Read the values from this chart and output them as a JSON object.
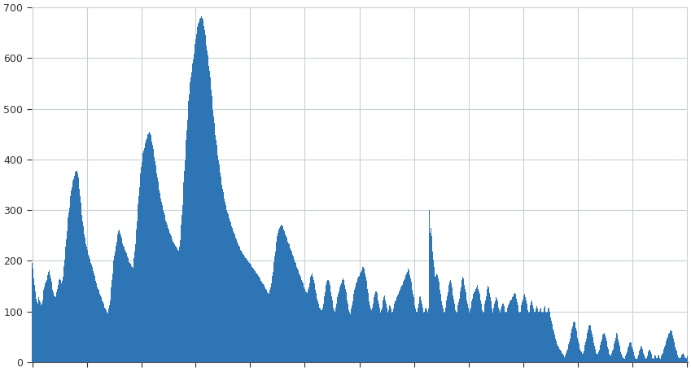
{
  "ylim": [
    0,
    700
  ],
  "yticks": [
    0,
    100,
    200,
    300,
    400,
    500,
    600,
    700
  ],
  "bar_color": "#2e75b6",
  "background_color": "#ffffff",
  "grid_color": "#c8d0d8",
  "figsize": [
    8.49,
    4.57
  ],
  "dpi": 100,
  "values": [
    195,
    185,
    175,
    165,
    152,
    140,
    132,
    125,
    118,
    115,
    120,
    128,
    122,
    118,
    115,
    112,
    115,
    122,
    132,
    142,
    148,
    152,
    155,
    158,
    162,
    168,
    172,
    178,
    182,
    178,
    172,
    165,
    158,
    150,
    142,
    138,
    135,
    132,
    130,
    128,
    132,
    138,
    145,
    152,
    158,
    162,
    165,
    162,
    158,
    155,
    160,
    168,
    178,
    190,
    202,
    215,
    228,
    242,
    258,
    272,
    285,
    295,
    305,
    315,
    328,
    338,
    345,
    352,
    358,
    362,
    368,
    372,
    375,
    378,
    380,
    378,
    372,
    365,
    355,
    342,
    328,
    315,
    302,
    290,
    278,
    268,
    260,
    252,
    245,
    238,
    232,
    228,
    222,
    218,
    212,
    208,
    204,
    200,
    196,
    192,
    188,
    184,
    180,
    175,
    170,
    165,
    160,
    155,
    150,
    148,
    145,
    142,
    138,
    135,
    132,
    128,
    125,
    122,
    118,
    115,
    112,
    108,
    105,
    102,
    100,
    98,
    96,
    98,
    105,
    112,
    122,
    135,
    148,
    162,
    175,
    188,
    200,
    210,
    218,
    225,
    230,
    238,
    245,
    252,
    258,
    262,
    260,
    255,
    250,
    245,
    240,
    235,
    230,
    228,
    225,
    222,
    218,
    215,
    212,
    208,
    205,
    202,
    198,
    196,
    194,
    192,
    190,
    188,
    186,
    195,
    205,
    218,
    232,
    248,
    262,
    278,
    295,
    312,
    328,
    345,
    360,
    372,
    385,
    395,
    405,
    412,
    418,
    422,
    428,
    432,
    438,
    442,
    445,
    450,
    452,
    455,
    455,
    452,
    448,
    442,
    435,
    428,
    420,
    412,
    404,
    396,
    388,
    380,
    372,
    364,
    356,
    348,
    340,
    334,
    328,
    322,
    316,
    310,
    305,
    300,
    295,
    290,
    285,
    280,
    276,
    272,
    268,
    265,
    262,
    258,
    255,
    252,
    248,
    245,
    242,
    238,
    236,
    234,
    232,
    230,
    228,
    226,
    224,
    222,
    220,
    218,
    228,
    240,
    255,
    272,
    290,
    310,
    332,
    355,
    378,
    398,
    418,
    438,
    458,
    478,
    498,
    515,
    528,
    540,
    552,
    562,
    572,
    580,
    590,
    598,
    608,
    618,
    628,
    638,
    648,
    655,
    662,
    668,
    672,
    676,
    678,
    680,
    682,
    682,
    680,
    676,
    670,
    663,
    655,
    645,
    635,
    625,
    615,
    605,
    595,
    585,
    575,
    562,
    550,
    538,
    525,
    512,
    498,
    485,
    472,
    460,
    448,
    438,
    428,
    418,
    408,
    398,
    390,
    382,
    374,
    366,
    358,
    350,
    342,
    335,
    328,
    322,
    316,
    310,
    305,
    300,
    296,
    292,
    288,
    284,
    280,
    276,
    272,
    268,
    265,
    262,
    258,
    255,
    252,
    248,
    245,
    242,
    238,
    235,
    232,
    230,
    228,
    225,
    222,
    220,
    218,
    216,
    214,
    212,
    210,
    208,
    206,
    205,
    204,
    202,
    200,
    198,
    196,
    195,
    194,
    192,
    190,
    188,
    186,
    185,
    184,
    182,
    180,
    178,
    176,
    175,
    174,
    172,
    170,
    168,
    165,
    162,
    160,
    158,
    156,
    155,
    154,
    152,
    150,
    148,
    145,
    142,
    140,
    138,
    136,
    135,
    138,
    142,
    148,
    155,
    162,
    170,
    178,
    188,
    198,
    208,
    218,
    228,
    238,
    248,
    255,
    260,
    262,
    265,
    268,
    270,
    272,
    270,
    268,
    265,
    262,
    258,
    255,
    252,
    248,
    245,
    242,
    238,
    235,
    232,
    228,
    225,
    222,
    218,
    215,
    212,
    208,
    205,
    202,
    198,
    195,
    192,
    188,
    185,
    182,
    178,
    175,
    172,
    168,
    165,
    162,
    158,
    155,
    152,
    148,
    145,
    142,
    140,
    138,
    136,
    138,
    142,
    148,
    155,
    162,
    168,
    172,
    175,
    172,
    168,
    162,
    155,
    148,
    142,
    136,
    130,
    125,
    120,
    115,
    112,
    108,
    105,
    102,
    100,
    102,
    108,
    115,
    122,
    130,
    138,
    145,
    152,
    158,
    162,
    165,
    162,
    158,
    152,
    145,
    138,
    130,
    122,
    115,
    108,
    102,
    100,
    102,
    108,
    115,
    122,
    128,
    135,
    140,
    145,
    148,
    152,
    155,
    158,
    162,
    165,
    162,
    158,
    152,
    145,
    138,
    130,
    122,
    115,
    108,
    102,
    98,
    95,
    98,
    105,
    112,
    120,
    128,
    135,
    142,
    148,
    152,
    155,
    158,
    162,
    165,
    168,
    170,
    172,
    175,
    178,
    182,
    185,
    188,
    188,
    185,
    180,
    175,
    168,
    160,
    152,
    144,
    136,
    128,
    120,
    112,
    105,
    100,
    102,
    108,
    115,
    122,
    128,
    135,
    140,
    142,
    140,
    136,
    130,
    122,
    115,
    108,
    102,
    98,
    102,
    108,
    115,
    122,
    128,
    132,
    128,
    122,
    115,
    108,
    102,
    98,
    102,
    108,
    112,
    110,
    105,
    100,
    98,
    100,
    105,
    110,
    115,
    120,
    122,
    125,
    128,
    132,
    135,
    138,
    140,
    142,
    145,
    148,
    150,
    152,
    155,
    158,
    162,
    165,
    168,
    172,
    175,
    178,
    182,
    185,
    182,
    178,
    172,
    165,
    158,
    150,
    142,
    135,
    128,
    120,
    112,
    105,
    100,
    98,
    100,
    108,
    115,
    122,
    128,
    130,
    128,
    122,
    115,
    108,
    102,
    98,
    100,
    105,
    110,
    108,
    102,
    98,
    100,
    105,
    300,
    240,
    255,
    265,
    248,
    232,
    218,
    202,
    188,
    175,
    168,
    170,
    175,
    178,
    172,
    165,
    158,
    150,
    142,
    135,
    128,
    120,
    112,
    105,
    100,
    98,
    100,
    108,
    115,
    122,
    130,
    138,
    145,
    152,
    158,
    162,
    160,
    155,
    148,
    140,
    132,
    124,
    116,
    108,
    102,
    98,
    100,
    105,
    112,
    118,
    125,
    132,
    140,
    148,
    155,
    162,
    168,
    165,
    160,
    152,
    145,
    138,
    130,
    122,
    115,
    108,
    102,
    98,
    102,
    108,
    115,
    120,
    125,
    130,
    135,
    138,
    140,
    142,
    144,
    148,
    152,
    150,
    145,
    140,
    135,
    128,
    122,
    115,
    108,
    102,
    98,
    100,
    108,
    115,
    122,
    130,
    138,
    145,
    150,
    148,
    142,
    136,
    128,
    120,
    112,
    105,
    98,
    100,
    108,
    115,
    120,
    125,
    128,
    125,
    120,
    114,
    108,
    102,
    98,
    100,
    105,
    110,
    115,
    118,
    115,
    110,
    105,
    100,
    98,
    100,
    105,
    108,
    112,
    115,
    118,
    120,
    122,
    124,
    126,
    128,
    130,
    132,
    135,
    136,
    135,
    130,
    125,
    118,
    112,
    105,
    100,
    98,
    100,
    105,
    112,
    118,
    124,
    128,
    132,
    135,
    132,
    128,
    122,
    115,
    108,
    102,
    98,
    100,
    105,
    112,
    118,
    122,
    118,
    112,
    105,
    100,
    98,
    100,
    105,
    108,
    110,
    105,
    100,
    98,
    100,
    104,
    108,
    104,
    100,
    98,
    100,
    104,
    108,
    110,
    105,
    100,
    98,
    100,
    105,
    108,
    105,
    100,
    95,
    88,
    82,
    76,
    70,
    65,
    60,
    55,
    50,
    46,
    42,
    38,
    35,
    32,
    30,
    28,
    26,
    24,
    22,
    20,
    18,
    16,
    14,
    12,
    10,
    12,
    15,
    18,
    22,
    26,
    30,
    35,
    40,
    46,
    52,
    58,
    65,
    70,
    75,
    78,
    80,
    78,
    74,
    68,
    62,
    55,
    48,
    42,
    36,
    30,
    25,
    22,
    20,
    18,
    16,
    18,
    22,
    28,
    34,
    40,
    46,
    52,
    58,
    64,
    68,
    72,
    74,
    72,
    68,
    62,
    56,
    50,
    44,
    38,
    32,
    26,
    22,
    18,
    16,
    14,
    16,
    20,
    24,
    28,
    34,
    40,
    45,
    50,
    54,
    56,
    58,
    56,
    52,
    48,
    42,
    36,
    30,
    25,
    20,
    16,
    14,
    12,
    14,
    18,
    22,
    26,
    30,
    36,
    42,
    48,
    54,
    58,
    54,
    50,
    44,
    38,
    32,
    26,
    20,
    16,
    12,
    10,
    8,
    7,
    6,
    8,
    12,
    16,
    20,
    24,
    28,
    32,
    36,
    38,
    40,
    38,
    35,
    30,
    26,
    20,
    16,
    12,
    8,
    6,
    4,
    6,
    10,
    14,
    18,
    22,
    26,
    30,
    32,
    30,
    26,
    22,
    18,
    14,
    10,
    8,
    6,
    8,
    12,
    16,
    20,
    24,
    26,
    24,
    20,
    16,
    12,
    8,
    6,
    8,
    12,
    14,
    12,
    8,
    6,
    8,
    12,
    14,
    12,
    8,
    6,
    8,
    12,
    16,
    18,
    22,
    26,
    30,
    34,
    38,
    42,
    46,
    50,
    54,
    56,
    58,
    60,
    62,
    62,
    60,
    56,
    52,
    46,
    40,
    35,
    30,
    26,
    22,
    18,
    14,
    10,
    8,
    6,
    8,
    10,
    12,
    14,
    16,
    18,
    16,
    14,
    10,
    8,
    6,
    8,
    12
  ]
}
